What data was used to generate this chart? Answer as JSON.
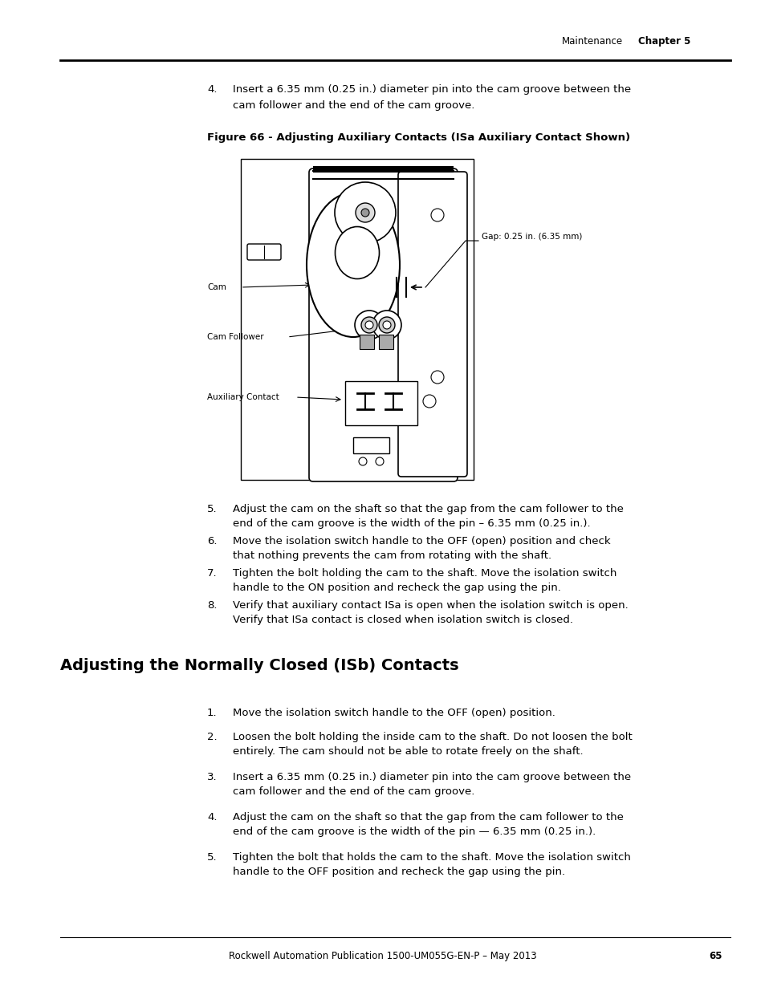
{
  "page_width": 9.54,
  "page_height": 12.35,
  "bg_color": "#ffffff",
  "header_right1": "Maintenance",
  "header_right2": "Chapter 5",
  "footer_text": "Rockwell Automation Publication 1500-UM055G-EN-P – May 2013",
  "footer_page_num": "65",
  "step4_line1": "Insert a 6.35 mm (0.25 in.) diameter pin into the cam groove between the",
  "step4_line2": "cam follower and the end of the cam groove.",
  "figure_caption": "Figure 66 - Adjusting Auxiliary Contacts (ISa Auxiliary Contact Shown)",
  "gap_label": "Gap: 0.25 in. (6.35 mm)",
  "label_cam": "Cam",
  "label_cam_follower": "Cam Follower",
  "label_aux": "Auxiliary Contact",
  "step5_line1": "Adjust the cam on the shaft so that the gap from the cam follower to the",
  "step5_line2": "end of the cam groove is the width of the pin – 6.35 mm (0.25 in.).",
  "step6_line1": "Move the isolation switch handle to the OFF (open) position and check",
  "step6_line2": "that nothing prevents the cam from rotating with the shaft.",
  "step7_line1": "Tighten the bolt holding the cam to the shaft. Move the isolation switch",
  "step7_line2": "handle to the ON position and recheck the gap using the pin.",
  "step8_line1": "Verify that auxiliary contact ISa is open when the isolation switch is open.",
  "step8_line2": "Verify that ISa contact is closed when isolation switch is closed.",
  "section_title": "Adjusting the Normally Closed (ISb) Contacts",
  "isb1_line1": "Move the isolation switch handle to the OFF (open) position.",
  "isb2_line1": "Loosen the bolt holding the inside cam to the shaft. Do not loosen the bolt",
  "isb2_line2": "entirely. The cam should not be able to rotate freely on the shaft.",
  "isb3_line1": "Insert a 6.35 mm (0.25 in.) diameter pin into the cam groove between the",
  "isb3_line2": "cam follower and the end of the cam groove.",
  "isb4_line1": "Adjust the cam on the shaft so that the gap from the cam follower to the",
  "isb4_line2": "end of the cam groove is the width of the pin — 6.35 mm (0.25 in.).",
  "isb5_line1": "Tighten the bolt that holds the cam to the shaft. Move the isolation switch",
  "isb5_line2": "handle to the OFF position and recheck the gap using the pin.",
  "font_body": 9.5,
  "font_caption": 9.5,
  "font_section": 14,
  "font_header": 8.5,
  "font_footer": 8.5,
  "font_diagram_label": 7.5
}
